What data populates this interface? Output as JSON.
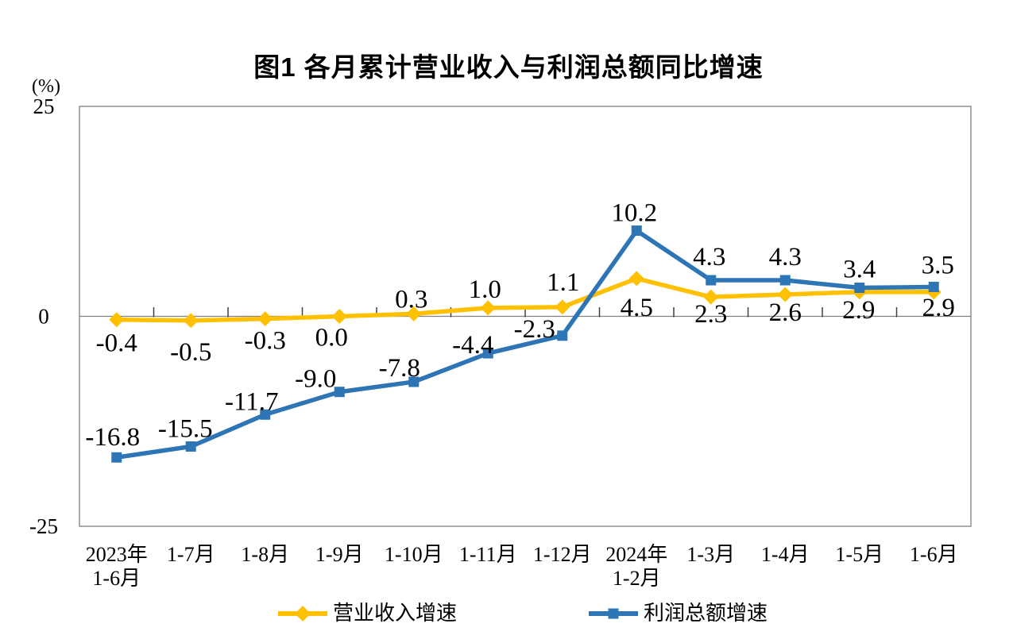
{
  "title": "图1 各月累计营业收入与利润总额同比增速",
  "axis_unit": "(%)",
  "chart_data": {
    "type": "line",
    "title": "图1 各月累计营业收入与利润总额同比增速",
    "ylabel": "(%)",
    "ylim": [
      -25,
      25
    ],
    "yticks": [
      25,
      0,
      -25
    ],
    "grid": "zero-line-only",
    "legend_position": "bottom",
    "categories": [
      "2023年\n1-6月",
      "1-7月",
      "1-8月",
      "1-9月",
      "1-10月",
      "1-11月",
      "1-12月",
      "2024年\n1-2月",
      "1-3月",
      "1-4月",
      "1-5月",
      "1-6月"
    ],
    "series": [
      {
        "name": "营业收入增速",
        "color": "#FFC000",
        "marker": "diamond",
        "values": [
          -0.4,
          -0.5,
          -0.3,
          0.0,
          0.3,
          1.0,
          1.1,
          4.5,
          2.3,
          2.6,
          2.9,
          2.9
        ],
        "label_offsets": [
          [
            0,
            29
          ],
          [
            0,
            39
          ],
          [
            0,
            27
          ],
          [
            -10,
            26
          ],
          [
            -3,
            -19
          ],
          [
            -4,
            -24
          ],
          [
            1,
            -32
          ],
          [
            0,
            36
          ],
          [
            0,
            21
          ],
          [
            0,
            22
          ],
          [
            -1,
            22
          ],
          [
            6,
            19
          ]
        ]
      },
      {
        "name": "利润总额增速",
        "color": "#2E75B6",
        "marker": "square",
        "values": [
          -16.8,
          -15.5,
          -11.7,
          -9.0,
          -7.8,
          -4.4,
          -2.3,
          10.2,
          4.3,
          4.3,
          3.4,
          3.5
        ],
        "label_offsets": [
          [
            -5,
            -26
          ],
          [
            -7,
            -23
          ],
          [
            -17,
            -17
          ],
          [
            -30,
            -17
          ],
          [
            -18,
            -18
          ],
          [
            -19,
            -11
          ],
          [
            -35,
            -9
          ],
          [
            -3,
            -23
          ],
          [
            -2,
            -30
          ],
          [
            0,
            -30
          ],
          [
            0,
            -24
          ],
          [
            5,
            -28
          ]
        ]
      }
    ],
    "axis_colors": {
      "border": "#808080",
      "zero_line": "#808080",
      "ticks": "#404040"
    }
  }
}
